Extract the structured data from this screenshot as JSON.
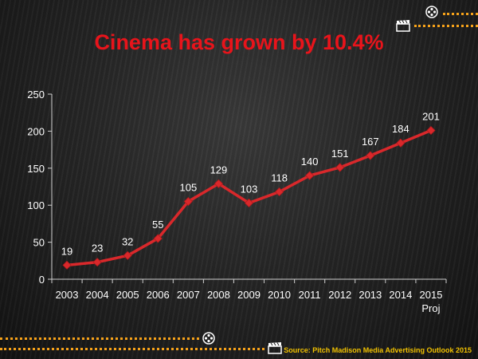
{
  "title": "Cinema has grown by 10.4%",
  "source": "Source: Pitch Madison Media Advertising Outlook 2015",
  "icons": [
    "film-reel-icon",
    "clapperboard-icon"
  ],
  "colors": {
    "title": "#e8141b",
    "line": "#d9282b",
    "dots": "#f6a21a",
    "source": "#f2c200",
    "text": "#ffffff"
  },
  "chart_data": {
    "type": "line",
    "title": "Cinema has grown by 10.4%",
    "categories": [
      "2003",
      "2004",
      "2005",
      "2006",
      "2007",
      "2008",
      "2009",
      "2010",
      "2011",
      "2012",
      "2013",
      "2014",
      "2015\nProj"
    ],
    "values": [
      19,
      23,
      32,
      55,
      105,
      129,
      103,
      118,
      140,
      151,
      167,
      184,
      201
    ],
    "ylim": [
      0,
      250
    ],
    "yticks": [
      0,
      50,
      100,
      150,
      200,
      250
    ],
    "xlabel": "",
    "ylabel": "",
    "grid": false,
    "legend": "none",
    "data_labels": true
  }
}
